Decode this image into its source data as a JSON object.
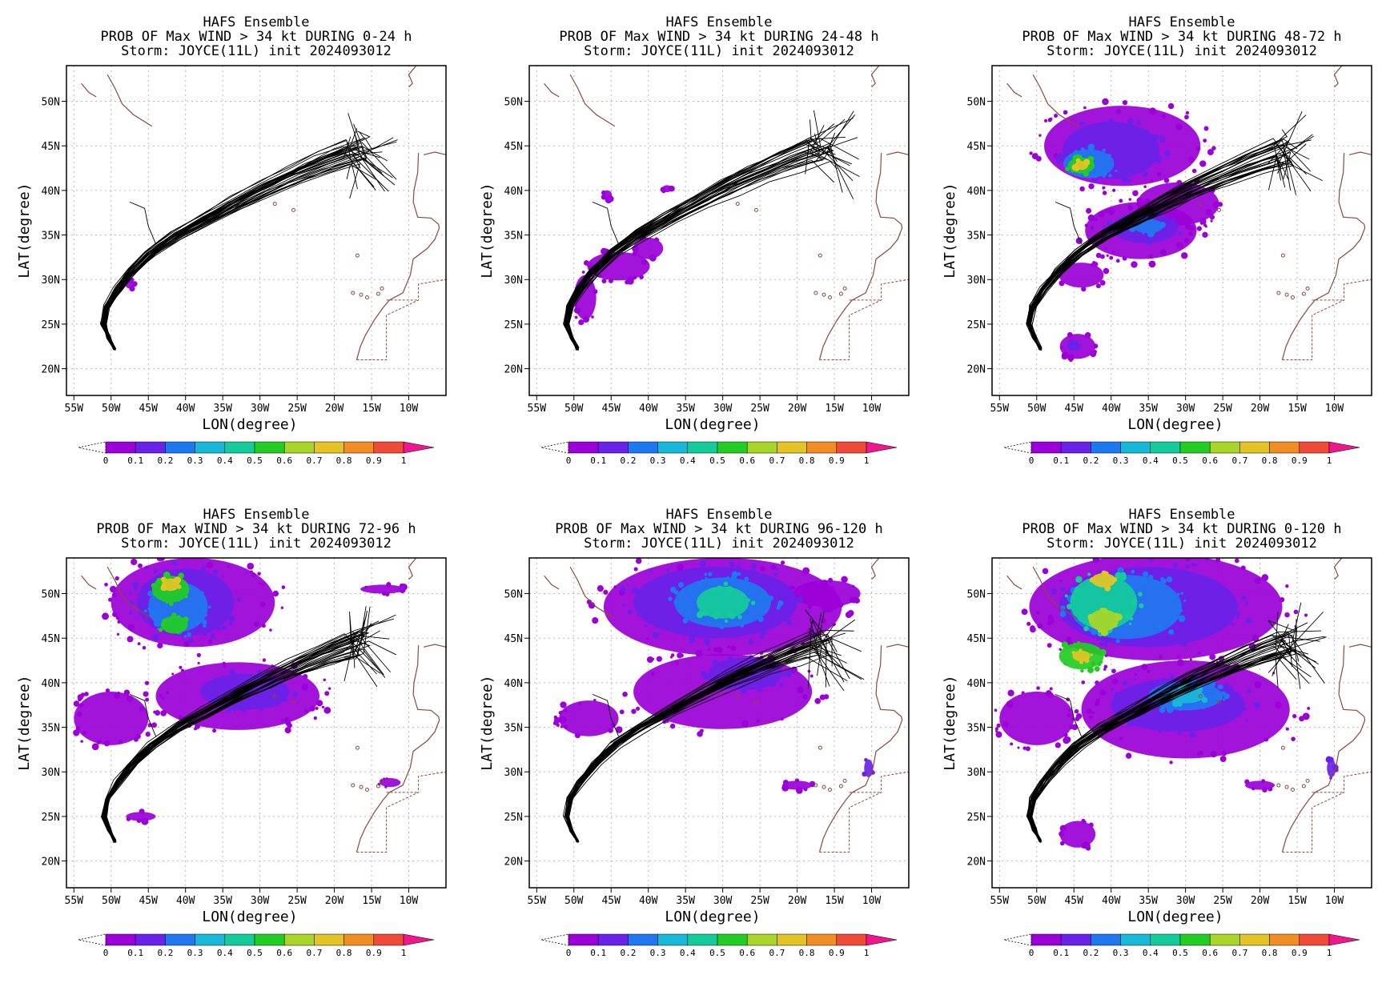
{
  "colors": {
    "frame": "#000000",
    "grid": "#b8b8b8",
    "coast": "#8b4a3c",
    "track": "#000000",
    "scale": [
      "#9b00d8",
      "#6a22e8",
      "#1e78f0",
      "#18b8d8",
      "#14cc9a",
      "#22cc22",
      "#a8d628",
      "#e4c424",
      "#f08e24",
      "#f04a38",
      "#f0168c"
    ]
  },
  "colorbar": {
    "labels": [
      "0",
      "0.1",
      "0.2",
      "0.3",
      "0.4",
      "0.5",
      "0.6",
      "0.7",
      "0.8",
      "0.9",
      "1"
    ]
  },
  "chart_data": [
    {
      "type": "heatmap",
      "title": [
        "HAFS Ensemble",
        "PROB OF Max WIND > 34 kt DURING  0-24 h",
        "Storm: JOYCE(11L) init 2024093012"
      ],
      "xlabel": "LON(degree)",
      "ylabel": "LAT(degree)",
      "xticks": [
        "55W",
        "50W",
        "45W",
        "40W",
        "35W",
        "30W",
        "25W",
        "20W",
        "15W",
        "10W"
      ],
      "yticks": [
        "20N",
        "25N",
        "30N",
        "35N",
        "40N",
        "45N",
        "50N"
      ],
      "xlim": [
        -56,
        -5
      ],
      "ylim": [
        17,
        54
      ],
      "grid": true,
      "blobs": [
        {
          "lon": -47.5,
          "lat": 29.5,
          "rlon": 0.6,
          "rlat": 0.5,
          "level": 0
        }
      ]
    },
    {
      "type": "heatmap",
      "title": [
        "HAFS Ensemble",
        "PROB OF Max WIND > 34 kt DURING 24-48 h",
        "Storm: JOYCE(11L) init 2024093012"
      ],
      "xlabel": "LON(degree)",
      "ylabel": "LAT(degree)",
      "xticks": [
        "55W",
        "50W",
        "45W",
        "40W",
        "35W",
        "30W",
        "25W",
        "20W",
        "15W",
        "10W"
      ],
      "yticks": [
        "20N",
        "25N",
        "30N",
        "35N",
        "40N",
        "45N",
        "50N"
      ],
      "xlim": [
        -56,
        -5
      ],
      "ylim": [
        17,
        54
      ],
      "grid": true,
      "blobs": [
        {
          "lon": -44,
          "lat": 31.5,
          "rlon": 4.2,
          "rlat": 1.6,
          "level": 0
        },
        {
          "lon": -40,
          "lat": 33.5,
          "rlon": 2.0,
          "rlat": 1.2,
          "level": 0
        },
        {
          "lon": -48.5,
          "lat": 28,
          "rlon": 1.5,
          "rlat": 2.5,
          "level": 0
        },
        {
          "lon": -45.5,
          "lat": 39.5,
          "rlon": 0.6,
          "rlat": 0.5,
          "level": 0
        },
        {
          "lon": -37.5,
          "lat": 40.2,
          "rlon": 0.6,
          "rlat": 0.4,
          "level": 0
        }
      ]
    },
    {
      "type": "heatmap",
      "title": [
        "HAFS Ensemble",
        "PROB OF Max WIND > 34 kt DURING 48-72 h",
        "Storm: JOYCE(11L) init 2024093012"
      ],
      "xlabel": "LON(degree)",
      "ylabel": "LAT(degree)",
      "xticks": [
        "55W",
        "50W",
        "45W",
        "40W",
        "35W",
        "30W",
        "25W",
        "20W",
        "15W",
        "10W"
      ],
      "yticks": [
        "20N",
        "25N",
        "30N",
        "35N",
        "40N",
        "45N",
        "50N"
      ],
      "xlim": [
        -56,
        -5
      ],
      "ylim": [
        17,
        54
      ],
      "grid": true,
      "blobs": [
        {
          "lon": -38.5,
          "lat": 45,
          "rlon": 10.5,
          "rlat": 4.5,
          "level": 0
        },
        {
          "lon": -40,
          "lat": 44.5,
          "rlon": 6.5,
          "rlat": 3.2,
          "level": 1
        },
        {
          "lon": -43,
          "lat": 43,
          "rlon": 3.4,
          "rlat": 1.6,
          "level": 2
        },
        {
          "lon": -44,
          "lat": 42.8,
          "rlon": 1.8,
          "rlat": 0.9,
          "level": 5
        },
        {
          "lon": -44,
          "lat": 42.8,
          "rlon": 0.9,
          "rlat": 0.5,
          "level": 7
        },
        {
          "lon": -36,
          "lat": 35.5,
          "rlon": 7.5,
          "rlat": 3.2,
          "level": 0
        },
        {
          "lon": -31,
          "lat": 38.5,
          "rlon": 5.5,
          "rlat": 2.4,
          "level": 0
        },
        {
          "lon": -35.5,
          "lat": 35.8,
          "rlon": 4.5,
          "rlat": 1.7,
          "level": 1
        },
        {
          "lon": -35,
          "lat": 36,
          "rlon": 2.0,
          "rlat": 0.8,
          "level": 2
        },
        {
          "lon": -44,
          "lat": 30.5,
          "rlon": 3.0,
          "rlat": 1.4,
          "level": 0
        },
        {
          "lon": -44.5,
          "lat": 22.5,
          "rlon": 2.4,
          "rlat": 1.4,
          "level": 0
        },
        {
          "lon": -45,
          "lat": 22.5,
          "rlon": 0.9,
          "rlat": 0.5,
          "level": 1
        }
      ]
    },
    {
      "type": "heatmap",
      "title": [
        "HAFS Ensemble",
        "PROB OF Max WIND > 34 kt DURING 72-96 h",
        "Storm: JOYCE(11L) init 2024093012"
      ],
      "xlabel": "LON(degree)",
      "ylabel": "LAT(degree)",
      "xticks": [
        "55W",
        "50W",
        "45W",
        "40W",
        "35W",
        "30W",
        "25W",
        "20W",
        "15W",
        "10W"
      ],
      "yticks": [
        "20N",
        "25N",
        "30N",
        "35N",
        "40N",
        "45N",
        "50N"
      ],
      "xlim": [
        -56,
        -5
      ],
      "ylim": [
        17,
        54
      ],
      "grid": true,
      "blobs": [
        {
          "lon": -39,
          "lat": 49,
          "rlon": 11,
          "rlat": 5,
          "level": 0
        },
        {
          "lon": -40,
          "lat": 49,
          "rlon": 6.5,
          "rlat": 3.8,
          "level": 1
        },
        {
          "lon": -41,
          "lat": 48.5,
          "rlon": 4.0,
          "rlat": 2.8,
          "level": 2
        },
        {
          "lon": -42,
          "lat": 50.5,
          "rlon": 2.5,
          "rlat": 1.5,
          "level": 5
        },
        {
          "lon": -42,
          "lat": 51,
          "rlon": 1.2,
          "rlat": 0.7,
          "level": 7
        },
        {
          "lon": -41.5,
          "lat": 46.5,
          "rlon": 1.8,
          "rlat": 1.0,
          "level": 5
        },
        {
          "lon": -13.5,
          "lat": 50.5,
          "rlon": 3.0,
          "rlat": 0.5,
          "level": 0
        },
        {
          "lon": -33,
          "lat": 38.5,
          "rlon": 11,
          "rlat": 3.8,
          "level": 0
        },
        {
          "lon": -32,
          "lat": 39,
          "rlon": 6,
          "rlat": 2.0,
          "level": 1
        },
        {
          "lon": -50,
          "lat": 36,
          "rlon": 5,
          "rlat": 3.0,
          "level": 0
        },
        {
          "lon": -46,
          "lat": 25,
          "rlon": 2.0,
          "rlat": 0.5,
          "level": 0
        },
        {
          "lon": -12.5,
          "lat": 28.8,
          "rlon": 1.4,
          "rlat": 0.5,
          "level": 0
        }
      ]
    },
    {
      "type": "heatmap",
      "title": [
        "HAFS Ensemble",
        "PROB OF Max WIND > 34 kt DURING 96-120 h",
        "Storm: JOYCE(11L) init 2024093012"
      ],
      "xlabel": "LON(degree)",
      "ylabel": "LAT(degree)",
      "xticks": [
        "55W",
        "50W",
        "45W",
        "40W",
        "35W",
        "30W",
        "25W",
        "20W",
        "15W",
        "10W"
      ],
      "yticks": [
        "20N",
        "25N",
        "30N",
        "35N",
        "40N",
        "45N",
        "50N"
      ],
      "xlim": [
        -56,
        -5
      ],
      "ylim": [
        17,
        54
      ],
      "grid": true,
      "blobs": [
        {
          "lon": -30,
          "lat": 48.5,
          "rlon": 16,
          "rlat": 5.5,
          "level": 0
        },
        {
          "lon": -16,
          "lat": 50,
          "rlon": 4.5,
          "rlat": 1.5,
          "level": 0
        },
        {
          "lon": -31,
          "lat": 49,
          "rlon": 11,
          "rlat": 4.0,
          "level": 1
        },
        {
          "lon": -30,
          "lat": 49,
          "rlon": 6.5,
          "rlat": 2.8,
          "level": 2
        },
        {
          "lon": -30,
          "lat": 49,
          "rlon": 3.5,
          "rlat": 1.8,
          "level": 4
        },
        {
          "lon": -30,
          "lat": 39,
          "rlon": 12,
          "rlat": 4.2,
          "level": 0
        },
        {
          "lon": -27,
          "lat": 41,
          "rlon": 5,
          "rlat": 1.8,
          "level": 1
        },
        {
          "lon": -48,
          "lat": 36,
          "rlon": 4,
          "rlat": 2.0,
          "level": 0
        },
        {
          "lon": -10.4,
          "lat": 30.4,
          "rlon": 0.6,
          "rlat": 1.0,
          "level": 1
        },
        {
          "lon": -20,
          "lat": 28.5,
          "rlon": 2.0,
          "rlat": 0.5,
          "level": 0
        }
      ]
    },
    {
      "type": "heatmap",
      "title": [
        "HAFS Ensemble",
        "PROB OF Max WIND > 34 kt DURING 0-120 h",
        "Storm: JOYCE(11L) init 2024093012"
      ],
      "xlabel": "LON(degree)",
      "ylabel": "LAT(degree)",
      "xticks": [
        "55W",
        "50W",
        "45W",
        "40W",
        "35W",
        "30W",
        "25W",
        "20W",
        "15W",
        "10W"
      ],
      "yticks": [
        "20N",
        "25N",
        "30N",
        "35N",
        "40N",
        "45N",
        "50N"
      ],
      "xlim": [
        -56,
        -5
      ],
      "ylim": [
        17,
        54
      ],
      "grid": true,
      "blobs": [
        {
          "lon": -34,
          "lat": 48.5,
          "rlon": 17,
          "rlat": 6.0,
          "level": 0
        },
        {
          "lon": -35,
          "lat": 48.5,
          "rlon": 12,
          "rlat": 4.5,
          "level": 1
        },
        {
          "lon": -38,
          "lat": 48.5,
          "rlon": 7.5,
          "rlat": 3.6,
          "level": 2
        },
        {
          "lon": -41,
          "lat": 49,
          "rlon": 4.5,
          "rlat": 3.0,
          "level": 4
        },
        {
          "lon": -41,
          "lat": 47,
          "rlon": 2.0,
          "rlat": 1.2,
          "level": 6
        },
        {
          "lon": -41,
          "lat": 51.5,
          "rlon": 1.6,
          "rlat": 0.8,
          "level": 7
        },
        {
          "lon": -44,
          "lat": 43,
          "rlon": 3.0,
          "rlat": 1.5,
          "level": 5
        },
        {
          "lon": -44,
          "lat": 43,
          "rlon": 1.2,
          "rlat": 0.6,
          "level": 7
        },
        {
          "lon": -30,
          "lat": 37,
          "rlon": 14,
          "rlat": 5.5,
          "level": 0
        },
        {
          "lon": -31,
          "lat": 37.5,
          "rlon": 9,
          "rlat": 3.0,
          "level": 1
        },
        {
          "lon": -30,
          "lat": 38.5,
          "rlon": 5,
          "rlat": 1.6,
          "level": 2
        },
        {
          "lon": -30,
          "lat": 38.5,
          "rlon": 2.5,
          "rlat": 0.8,
          "level": 3
        },
        {
          "lon": -50,
          "lat": 36,
          "rlon": 5,
          "rlat": 3.0,
          "level": 0
        },
        {
          "lon": -44.5,
          "lat": 23,
          "rlon": 2.4,
          "rlat": 1.5,
          "level": 0
        },
        {
          "lon": -10.4,
          "lat": 30.4,
          "rlon": 0.6,
          "rlat": 1.0,
          "level": 1
        },
        {
          "lon": -20,
          "lat": 28.5,
          "rlon": 2.0,
          "rlat": 0.5,
          "level": 0
        }
      ]
    }
  ]
}
